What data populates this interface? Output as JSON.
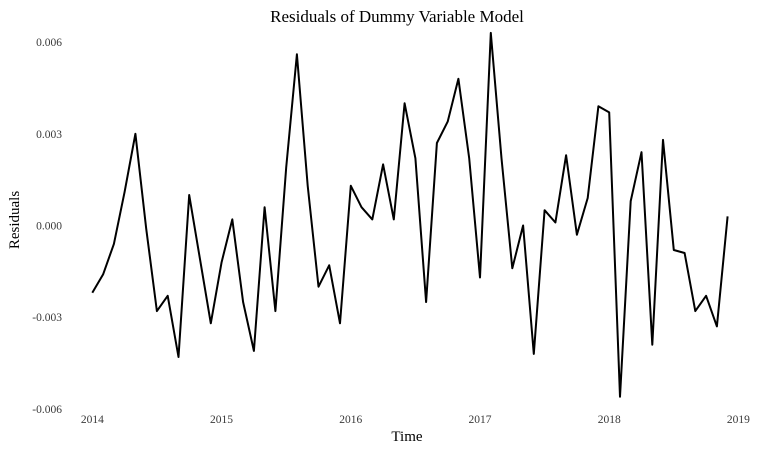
{
  "chart_data": {
    "type": "line",
    "title": "Residuals of Dummy Variable Model",
    "xlabel": "Time",
    "ylabel": "Residuals",
    "xlim": [
      2013.92,
      2019.02
    ],
    "ylim": [
      -0.0061,
      0.0062
    ],
    "x_ticks": [
      2014,
      2015,
      2016,
      2017,
      2018,
      2019
    ],
    "x_tick_labels": [
      "2014",
      "2015",
      "2016",
      "2017",
      "2018",
      "2019"
    ],
    "y_ticks": [
      -0.006,
      -0.003,
      0.0,
      0.003,
      0.006
    ],
    "y_tick_labels": [
      "-0.006",
      "-0.003",
      "0.000",
      "0.003",
      "0.006"
    ],
    "grid": false,
    "line_color": "#000000",
    "series": [
      {
        "x_start": 2014.0,
        "x_step": 0.0833333,
        "values": [
          -0.0022,
          -0.0016,
          -0.0006,
          0.0011,
          0.003,
          -0.0001,
          -0.0028,
          -0.0023,
          -0.0043,
          0.001,
          -0.0011,
          -0.0032,
          -0.0012,
          0.0002,
          -0.0025,
          -0.0041,
          0.0006,
          -0.0028,
          0.0019,
          0.0056,
          0.0013,
          -0.002,
          -0.0013,
          -0.0032,
          0.0013,
          0.0006,
          0.0002,
          0.002,
          0.0002,
          0.004,
          0.0022,
          -0.0025,
          0.0027,
          0.0034,
          0.0048,
          0.0022,
          -0.0017,
          0.0063,
          0.0022,
          -0.0014,
          0.0,
          -0.0042,
          0.0005,
          0.0001,
          0.0023,
          -0.0003,
          0.0009,
          0.0039,
          0.0037,
          -0.0056,
          0.0008,
          0.0024,
          -0.0039,
          0.0028,
          -0.0008,
          -0.0009,
          -0.0028,
          -0.0023,
          -0.0033,
          0.0003
        ]
      }
    ]
  }
}
